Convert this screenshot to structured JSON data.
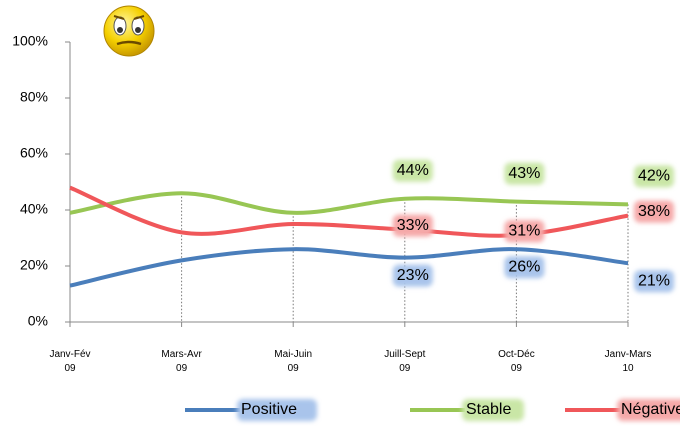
{
  "chart_data": {
    "type": "line",
    "categories": [
      "Janv-Fév 09",
      "Mars-Avr 09",
      "Mai-Juin 09",
      "Juill-Sept 09",
      "Oct-Déc 09",
      "Janv-Mars 10"
    ],
    "series": [
      {
        "name": "Positive",
        "color": "#4a7ebb",
        "values": [
          13,
          22,
          26,
          23,
          26,
          21
        ],
        "value_labels": [
          null,
          null,
          null,
          "23%",
          "26%",
          "21%"
        ]
      },
      {
        "name": "Stable",
        "color": "#98c654",
        "values": [
          39,
          46,
          39,
          44,
          43,
          42
        ],
        "value_labels": [
          null,
          null,
          null,
          "44%",
          "43%",
          "42%"
        ]
      },
      {
        "name": "Négative",
        "color": "#f0575a",
        "values": [
          48,
          32,
          35,
          33,
          31,
          38
        ],
        "value_labels": [
          null,
          null,
          null,
          "33%",
          "31%",
          "38%"
        ]
      }
    ],
    "ylim": [
      0,
      100
    ],
    "yticks": [
      {
        "value": 0,
        "label": "0%"
      },
      {
        "value": 20,
        "label": "20%"
      },
      {
        "value": 40,
        "label": "40%"
      },
      {
        "value": 60,
        "label": "60%"
      },
      {
        "value": 80,
        "label": "80%"
      },
      {
        "value": 100,
        "label": "100%"
      }
    ],
    "legend": "bottom"
  }
}
